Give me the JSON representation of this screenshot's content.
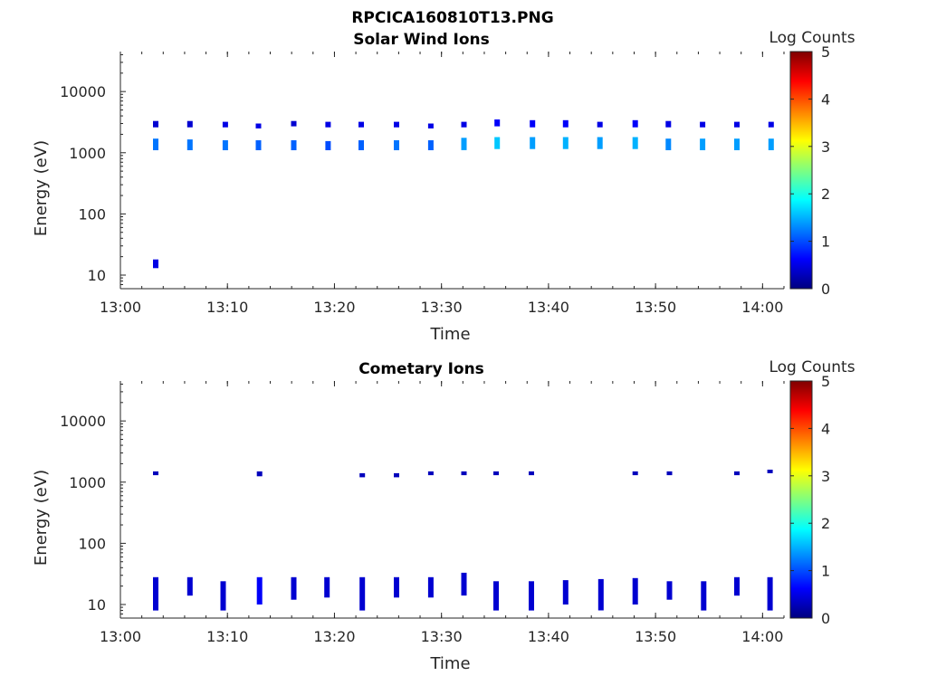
{
  "figure": {
    "title": "RPCICA160810T13.PNG"
  },
  "colormap": [
    "#00007f",
    "#0000ff",
    "#007fff",
    "#00ffff",
    "#7fff7f",
    "#ffff00",
    "#ff7f00",
    "#ff0000",
    "#7f0000"
  ],
  "chart_data": [
    {
      "type": "heatmap",
      "title": "Solar Wind Ions",
      "xlabel": "Time",
      "ylabel": "Energy (eV)",
      "yscale": "log",
      "ylim": [
        6,
        45000
      ],
      "xlim": [
        "13:00",
        "14:02"
      ],
      "x_ticks": [
        "13:00",
        "13:10",
        "13:20",
        "13:30",
        "13:40",
        "13:50",
        "14:00"
      ],
      "y_ticks": [
        "10",
        "100",
        "1000",
        "10000"
      ],
      "colorbar": {
        "label": "Log Counts",
        "range": [
          0,
          5
        ],
        "ticks": [
          "0",
          "1",
          "2",
          "3",
          "4",
          "5"
        ]
      },
      "blobs": [
        {
          "t": 3.3,
          "e": [
            2600,
            3300
          ],
          "c": 0.4
        },
        {
          "t": 3.3,
          "e": [
            1100,
            1700
          ],
          "c": 1.2
        },
        {
          "t": 3.3,
          "e": [
            13,
            18
          ],
          "c": 0.5
        },
        {
          "t": 6.5,
          "e": [
            2600,
            3300
          ],
          "c": 0.4
        },
        {
          "t": 6.5,
          "e": [
            1100,
            1650
          ],
          "c": 1.2
        },
        {
          "t": 9.8,
          "e": [
            2600,
            3200
          ],
          "c": 0.5
        },
        {
          "t": 9.8,
          "e": [
            1100,
            1600
          ],
          "c": 1.2
        },
        {
          "t": 12.9,
          "e": [
            2500,
            3000
          ],
          "c": 0.5
        },
        {
          "t": 12.9,
          "e": [
            1100,
            1600
          ],
          "c": 1.1
        },
        {
          "t": 16.2,
          "e": [
            2700,
            3300
          ],
          "c": 0.4
        },
        {
          "t": 16.2,
          "e": [
            1100,
            1600
          ],
          "c": 1.1
        },
        {
          "t": 19.4,
          "e": [
            2600,
            3200
          ],
          "c": 0.5
        },
        {
          "t": 19.4,
          "e": [
            1100,
            1550
          ],
          "c": 1.0
        },
        {
          "t": 22.5,
          "e": [
            2600,
            3200
          ],
          "c": 0.5
        },
        {
          "t": 22.5,
          "e": [
            1100,
            1600
          ],
          "c": 1.1
        },
        {
          "t": 25.8,
          "e": [
            2600,
            3200
          ],
          "c": 0.5
        },
        {
          "t": 25.8,
          "e": [
            1100,
            1600
          ],
          "c": 1.2
        },
        {
          "t": 29.0,
          "e": [
            2500,
            3000
          ],
          "c": 0.5
        },
        {
          "t": 29.0,
          "e": [
            1100,
            1600
          ],
          "c": 1.1
        },
        {
          "t": 32.1,
          "e": [
            2600,
            3200
          ],
          "c": 0.5
        },
        {
          "t": 32.1,
          "e": [
            1100,
            1750
          ],
          "c": 1.4
        },
        {
          "t": 35.2,
          "e": [
            2700,
            3500
          ],
          "c": 0.6
        },
        {
          "t": 35.2,
          "e": [
            1150,
            1800
          ],
          "c": 1.6
        },
        {
          "t": 38.5,
          "e": [
            2600,
            3400
          ],
          "c": 0.6
        },
        {
          "t": 38.5,
          "e": [
            1150,
            1800
          ],
          "c": 1.4
        },
        {
          "t": 41.6,
          "e": [
            2600,
            3400
          ],
          "c": 0.6
        },
        {
          "t": 41.6,
          "e": [
            1150,
            1800
          ],
          "c": 1.5
        },
        {
          "t": 44.8,
          "e": [
            2600,
            3200
          ],
          "c": 0.5
        },
        {
          "t": 44.8,
          "e": [
            1150,
            1800
          ],
          "c": 1.4
        },
        {
          "t": 48.1,
          "e": [
            2600,
            3400
          ],
          "c": 0.6
        },
        {
          "t": 48.1,
          "e": [
            1150,
            1800
          ],
          "c": 1.5
        },
        {
          "t": 51.2,
          "e": [
            2600,
            3300
          ],
          "c": 0.5
        },
        {
          "t": 51.2,
          "e": [
            1100,
            1700
          ],
          "c": 1.3
        },
        {
          "t": 54.4,
          "e": [
            2600,
            3200
          ],
          "c": 0.5
        },
        {
          "t": 54.4,
          "e": [
            1100,
            1700
          ],
          "c": 1.4
        },
        {
          "t": 57.6,
          "e": [
            2600,
            3200
          ],
          "c": 0.5
        },
        {
          "t": 57.6,
          "e": [
            1100,
            1700
          ],
          "c": 1.4
        },
        {
          "t": 60.8,
          "e": [
            2600,
            3200
          ],
          "c": 0.5
        },
        {
          "t": 60.8,
          "e": [
            1100,
            1700
          ],
          "c": 1.4
        }
      ]
    },
    {
      "type": "heatmap",
      "title": "Cometary Ions",
      "xlabel": "Time",
      "ylabel": "Energy (eV)",
      "yscale": "log",
      "ylim": [
        6,
        45000
      ],
      "xlim": [
        "13:00",
        "14:02"
      ],
      "x_ticks": [
        "13:00",
        "13:10",
        "13:20",
        "13:30",
        "13:40",
        "13:50",
        "14:00"
      ],
      "y_ticks": [
        "10",
        "100",
        "1000",
        "10000"
      ],
      "colorbar": {
        "label": "Log Counts",
        "range": [
          0,
          5
        ],
        "ticks": [
          "0",
          "1",
          "2",
          "3",
          "4",
          "5"
        ]
      },
      "blobs": [
        {
          "t": 3.3,
          "e": [
            1300,
            1500
          ],
          "c": 0.3
        },
        {
          "t": 3.3,
          "e": [
            8,
            28
          ],
          "c": 0.4
        },
        {
          "t": 6.5,
          "e": [
            14,
            28
          ],
          "c": 0.4
        },
        {
          "t": 9.6,
          "e": [
            8,
            24
          ],
          "c": 0.4
        },
        {
          "t": 13.0,
          "e": [
            1250,
            1500
          ],
          "c": 0.3
        },
        {
          "t": 13.0,
          "e": [
            10,
            28
          ],
          "c": 0.6
        },
        {
          "t": 16.2,
          "e": [
            12,
            28
          ],
          "c": 0.4
        },
        {
          "t": 19.3,
          "e": [
            13,
            28
          ],
          "c": 0.4
        },
        {
          "t": 22.6,
          "e": [
            1200,
            1400
          ],
          "c": 0.3
        },
        {
          "t": 22.6,
          "e": [
            8,
            28
          ],
          "c": 0.4
        },
        {
          "t": 25.8,
          "e": [
            1200,
            1400
          ],
          "c": 0.3
        },
        {
          "t": 25.8,
          "e": [
            13,
            28
          ],
          "c": 0.4
        },
        {
          "t": 29.0,
          "e": [
            1300,
            1500
          ],
          "c": 0.3
        },
        {
          "t": 29.0,
          "e": [
            13,
            28
          ],
          "c": 0.4
        },
        {
          "t": 32.1,
          "e": [
            1300,
            1500
          ],
          "c": 0.3
        },
        {
          "t": 32.1,
          "e": [
            14,
            33
          ],
          "c": 0.4
        },
        {
          "t": 35.1,
          "e": [
            1300,
            1500
          ],
          "c": 0.3
        },
        {
          "t": 35.1,
          "e": [
            8,
            24
          ],
          "c": 0.4
        },
        {
          "t": 38.4,
          "e": [
            1300,
            1500
          ],
          "c": 0.3
        },
        {
          "t": 38.4,
          "e": [
            8,
            24
          ],
          "c": 0.4
        },
        {
          "t": 41.6,
          "e": [
            10,
            25
          ],
          "c": 0.4
        },
        {
          "t": 44.9,
          "e": [
            8,
            26
          ],
          "c": 0.4
        },
        {
          "t": 48.1,
          "e": [
            1300,
            1500
          ],
          "c": 0.3
        },
        {
          "t": 48.1,
          "e": [
            10,
            27
          ],
          "c": 0.4
        },
        {
          "t": 51.3,
          "e": [
            1300,
            1500
          ],
          "c": 0.3
        },
        {
          "t": 51.3,
          "e": [
            12,
            24
          ],
          "c": 0.4
        },
        {
          "t": 54.5,
          "e": [
            8,
            24
          ],
          "c": 0.4
        },
        {
          "t": 57.6,
          "e": [
            1300,
            1500
          ],
          "c": 0.3
        },
        {
          "t": 57.6,
          "e": [
            14,
            28
          ],
          "c": 0.4
        },
        {
          "t": 60.7,
          "e": [
            1400,
            1600
          ],
          "c": 0.3
        },
        {
          "t": 60.7,
          "e": [
            8,
            28
          ],
          "c": 0.4
        }
      ]
    }
  ]
}
